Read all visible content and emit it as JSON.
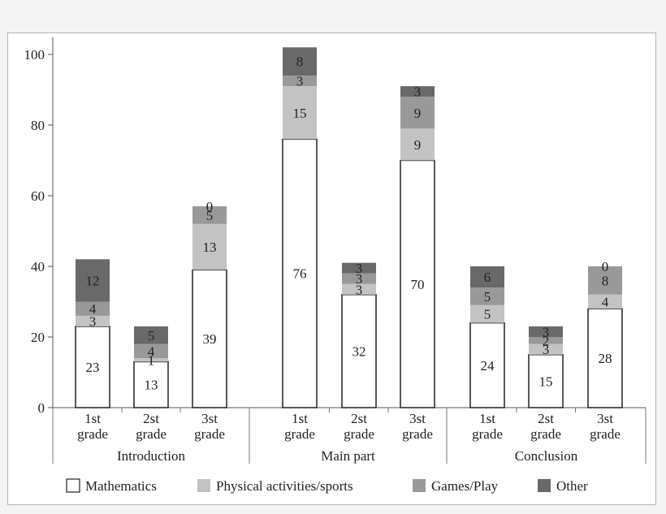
{
  "chart_data": {
    "type": "bar",
    "stacked": true,
    "groups": [
      {
        "name": "Introduction",
        "categories": [
          "1st grade",
          "2st grade",
          "3st grade"
        ]
      },
      {
        "name": "Main part",
        "categories": [
          "1st grade",
          "2st grade",
          "3st grade"
        ]
      },
      {
        "name": "Conclusion",
        "categories": [
          "1st grade",
          "2st grade",
          "3st grade"
        ]
      }
    ],
    "series": [
      {
        "name": "Mathematics",
        "color": "#ffffff",
        "values": [
          23,
          13,
          39,
          76,
          32,
          70,
          24,
          15,
          28
        ]
      },
      {
        "name": "Physical activities/sports",
        "color": "#c3c3c3",
        "values": [
          3,
          1,
          13,
          15,
          3,
          9,
          5,
          3,
          4
        ]
      },
      {
        "name": "Games/Play",
        "color": "#999999",
        "values": [
          4,
          4,
          5,
          3,
          3,
          9,
          5,
          2,
          8
        ]
      },
      {
        "name": "Other",
        "color": "#696969",
        "values": [
          12,
          5,
          0,
          8,
          3,
          3,
          6,
          3,
          0
        ]
      }
    ],
    "ylim": [
      0,
      100
    ],
    "yticks": [
      0,
      20,
      40,
      60,
      80,
      100
    ],
    "grid": false,
    "legend": "bottom"
  }
}
